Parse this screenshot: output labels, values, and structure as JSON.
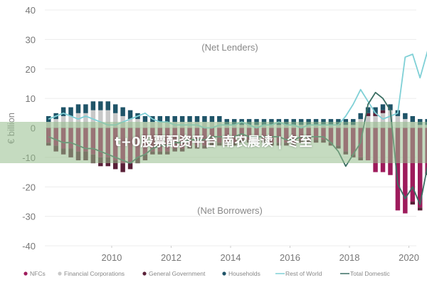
{
  "chart_data": {
    "type": "bar",
    "ylabel": "€ billion",
    "ylim": [
      -40,
      40
    ],
    "yticks": [
      40,
      30,
      20,
      10,
      0,
      -10,
      -20,
      -30,
      -40
    ],
    "xticks": [
      "2010",
      "2012",
      "2014",
      "2016",
      "2018",
      "2020"
    ],
    "x_start": "2008Q2",
    "x_end": "2020Q3",
    "annotations": [
      "(Net Lenders)",
      "(Net Borrowers)"
    ],
    "colors": {
      "NFCs": "#9e1b5c",
      "Financial Corporations": "#c8c8c8",
      "General Government": "#5a2038",
      "Households": "#1f5468",
      "Rest of World": "#7fd0d6",
      "Total Domestic": "#3a6e62"
    },
    "series": [
      {
        "name": "NFCs",
        "kind": "bar",
        "values": [
          -5,
          -6,
          -7,
          -7,
          -8,
          -8,
          -9,
          -10,
          -10,
          -11,
          -12,
          -12,
          -10,
          -9,
          -8,
          -8,
          -8,
          -7,
          -7,
          -6,
          -6,
          -6,
          -5,
          -5,
          -5,
          -5,
          -4,
          -4,
          -4,
          -4,
          -5,
          -5,
          -5,
          -5,
          -4,
          -4,
          -4,
          -4,
          -5,
          -6,
          -8,
          -9,
          -10,
          -11,
          -15,
          -15,
          -16,
          -28,
          -29,
          -25,
          -27,
          -15,
          -14
        ]
      },
      {
        "name": "Financial Corporations",
        "kind": "bar",
        "values": [
          2,
          3,
          4,
          4,
          5,
          5,
          6,
          6,
          6,
          5,
          4,
          3,
          3,
          2,
          2,
          2,
          2,
          2,
          2,
          2,
          2,
          2,
          2,
          2,
          1,
          1,
          1,
          1,
          1,
          1,
          1,
          1,
          1,
          1,
          1,
          1,
          1,
          1,
          1,
          1,
          1,
          1,
          3,
          4,
          4,
          5,
          6,
          4,
          3,
          2,
          1,
          1,
          1
        ]
      },
      {
        "name": "General Government",
        "kind": "bar",
        "values": [
          -1,
          -2,
          -2,
          -3,
          -3,
          -3,
          -3,
          -3,
          -3,
          -3,
          -3,
          -2,
          -2,
          -2,
          -1,
          -1,
          -1,
          -1,
          -1,
          -1,
          -1,
          -1,
          -1,
          -1,
          -1,
          -1,
          -1,
          -1,
          -1,
          -1,
          -1,
          -1,
          -1,
          -1,
          -1,
          -1,
          -1,
          -1,
          -1,
          -1,
          -1,
          -1,
          -1,
          1,
          1,
          1,
          0,
          0,
          0,
          -1,
          -1,
          -1,
          -1
        ]
      },
      {
        "name": "Households",
        "kind": "bar",
        "values": [
          2,
          2,
          3,
          3,
          3,
          3,
          3,
          3,
          3,
          3,
          3,
          3,
          2,
          2,
          2,
          2,
          2,
          2,
          2,
          2,
          2,
          2,
          2,
          2,
          2,
          2,
          2,
          2,
          2,
          2,
          2,
          2,
          2,
          2,
          2,
          2,
          2,
          2,
          2,
          2,
          2,
          2,
          2,
          2,
          2,
          2,
          2,
          2,
          2,
          2,
          2,
          2,
          2
        ]
      },
      {
        "name": "Rest of World",
        "kind": "line",
        "values": [
          3,
          4,
          5,
          4,
          3,
          4,
          3,
          2,
          1,
          1,
          2,
          3,
          4,
          5,
          3,
          2,
          2,
          1,
          1,
          1,
          1,
          0,
          0,
          1,
          1,
          1,
          2,
          1,
          0,
          1,
          1,
          2,
          1,
          1,
          0,
          1,
          1,
          1,
          1,
          1,
          4,
          8,
          13,
          9,
          5,
          3,
          4,
          5,
          24,
          25,
          17,
          26,
          12
        ]
      },
      {
        "name": "Total Domestic",
        "kind": "line",
        "values": [
          -3,
          -4,
          -5,
          -5,
          -6,
          -7,
          -7,
          -8,
          -9,
          -10,
          -11,
          -12,
          -10,
          -9,
          -7,
          -6,
          -6,
          -5,
          -5,
          -4,
          -4,
          -4,
          -3,
          -3,
          -3,
          -3,
          -2,
          -3,
          -3,
          -3,
          -3,
          -3,
          -4,
          -4,
          -3,
          -3,
          -3,
          -3,
          -5,
          -8,
          -13,
          -9,
          -5,
          8,
          12,
          10,
          6,
          -19,
          -24,
          -20,
          -26,
          -13,
          -12
        ]
      }
    ]
  },
  "watermark": "t+0股票配资平台 南农晨读 | 冬至"
}
